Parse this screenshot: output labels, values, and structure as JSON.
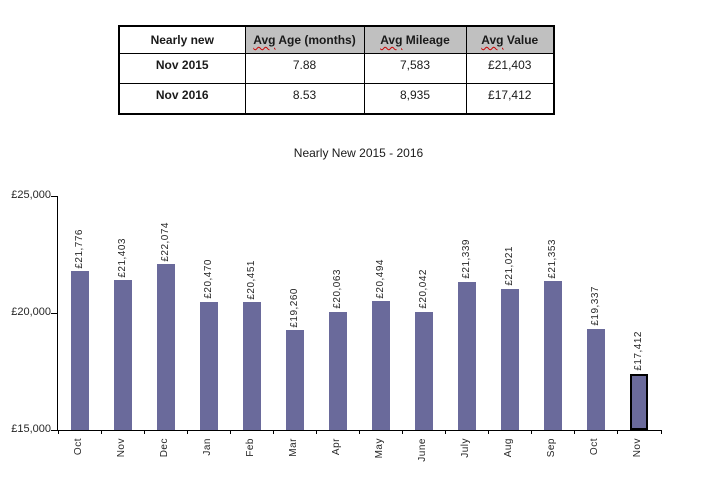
{
  "table": {
    "headers": [
      "Nearly new",
      "Avg Age (months)",
      "Avg Mileage",
      "Avg Value"
    ],
    "header_bg": "#c0c0c0",
    "spellcheck_word": "Avg",
    "spellcheck_color": "#cc0000",
    "rows": [
      {
        "label": "Nov 2015",
        "values": [
          "7.88",
          "7,583",
          "£21,403"
        ]
      },
      {
        "label": "Nov 2016",
        "values": [
          "8.53",
          "8,935",
          "£17,412"
        ]
      }
    ]
  },
  "chart_data": {
    "type": "bar",
    "title": "Nearly New 2015 - 2016",
    "categories": [
      "Oct",
      "Nov",
      "Dec",
      "Jan",
      "Feb",
      "Mar",
      "Apr",
      "May",
      "June",
      "July",
      "Aug",
      "Sep",
      "Oct",
      "Nov"
    ],
    "values": [
      21776,
      21403,
      22074,
      20470,
      20451,
      19260,
      20063,
      20494,
      20042,
      21339,
      21021,
      21353,
      19337,
      17412
    ],
    "bar_labels": [
      "£21,776",
      "£21,403",
      "£22,074",
      "£20,470",
      "£20,451",
      "£19,260",
      "£20,063",
      "£20,494",
      "£20,042",
      "£21,339",
      "£21,021",
      "£21,353",
      "£19,337",
      "£17,412"
    ],
    "xlabel": "",
    "ylabel": "",
    "ylim": [
      15000,
      25000
    ],
    "yticks": [
      {
        "value": 25000,
        "label": "£25,000"
      },
      {
        "value": 20000,
        "label": "£20,000"
      },
      {
        "value": 15000,
        "label": "£15,000"
      }
    ],
    "bar_color": "#6a6a9b",
    "highlight_index": 13,
    "highlight_border_color": "#000000",
    "grid": false,
    "legend": false,
    "label_rotation": "vertical"
  }
}
